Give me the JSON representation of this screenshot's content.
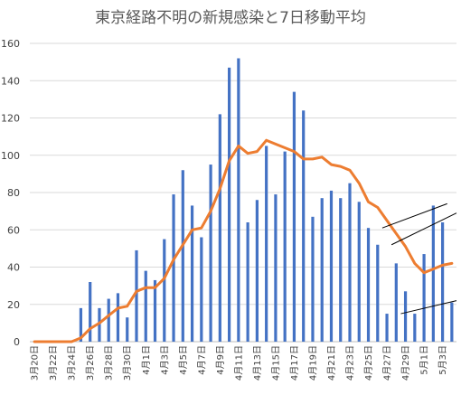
{
  "chart_data": {
    "type": "bar",
    "title": "東京経路不明の新規感染と7日移動平均",
    "ylim": [
      0,
      160
    ],
    "yticks": [
      0,
      20,
      40,
      60,
      80,
      100,
      120,
      140,
      160
    ],
    "grid": true,
    "categories": [
      "3月20日",
      "3月21日",
      "3月22日",
      "3月23日",
      "3月24日",
      "3月25日",
      "3月26日",
      "3月27日",
      "3月28日",
      "3月29日",
      "3月30日",
      "3月31日",
      "4月1日",
      "4月2日",
      "4月3日",
      "4月4日",
      "4月5日",
      "4月6日",
      "4月7日",
      "4月8日",
      "4月9日",
      "4月10日",
      "4月11日",
      "4月12日",
      "4月13日",
      "4月14日",
      "4月15日",
      "4月16日",
      "4月17日",
      "4月18日",
      "4月19日",
      "4月20日",
      "4月21日",
      "4月22日",
      "4月23日",
      "4月24日",
      "4月25日",
      "4月26日",
      "4月27日",
      "4月28日",
      "4月29日",
      "4月30日",
      "5月1日",
      "5月2日",
      "5月3日",
      "5月4日"
    ],
    "tick_labels": [
      "3月20日",
      "3月22日",
      "3月24日",
      "3月26日",
      "3月28日",
      "3月30日",
      "4月1日",
      "4月3日",
      "4月5日",
      "4月7日",
      "4月9日",
      "4月11日",
      "4月13日",
      "4月15日",
      "4月17日",
      "4月19日",
      "4月21日",
      "4月23日",
      "4月25日",
      "4月27日",
      "4月29日",
      "5月1日",
      "5月3日"
    ],
    "series": [
      {
        "kind": "bar",
        "color": "#4472C4",
        "values": [
          0,
          0,
          0,
          0,
          0,
          18,
          32,
          18,
          23,
          26,
          13,
          49,
          38,
          33,
          55,
          79,
          92,
          73,
          56,
          95,
          122,
          147,
          152,
          64,
          76,
          105,
          79,
          102,
          134,
          124,
          67,
          77,
          81,
          77,
          85,
          75,
          61,
          52,
          15,
          42,
          27,
          15,
          47,
          73,
          64,
          21
        ]
      },
      {
        "kind": "line",
        "color": "#ED7D31",
        "values": [
          0,
          0,
          0,
          0,
          0,
          2,
          7,
          10,
          14,
          18,
          19,
          27,
          29,
          29,
          34,
          44,
          52,
          60,
          61,
          70,
          82,
          97,
          105,
          101,
          102,
          108,
          106,
          104,
          102,
          98,
          98,
          99,
          95,
          94,
          92,
          85,
          75,
          72,
          65,
          58,
          51,
          42,
          37,
          39,
          41,
          42
        ]
      }
    ],
    "annotations": [
      {
        "from": [
          38,
          61
        ],
        "to": [
          45,
          74
        ]
      },
      {
        "from": [
          39,
          52
        ],
        "to": [
          46,
          69
        ]
      },
      {
        "from": [
          40,
          15
        ],
        "to": [
          47,
          22
        ]
      }
    ]
  }
}
